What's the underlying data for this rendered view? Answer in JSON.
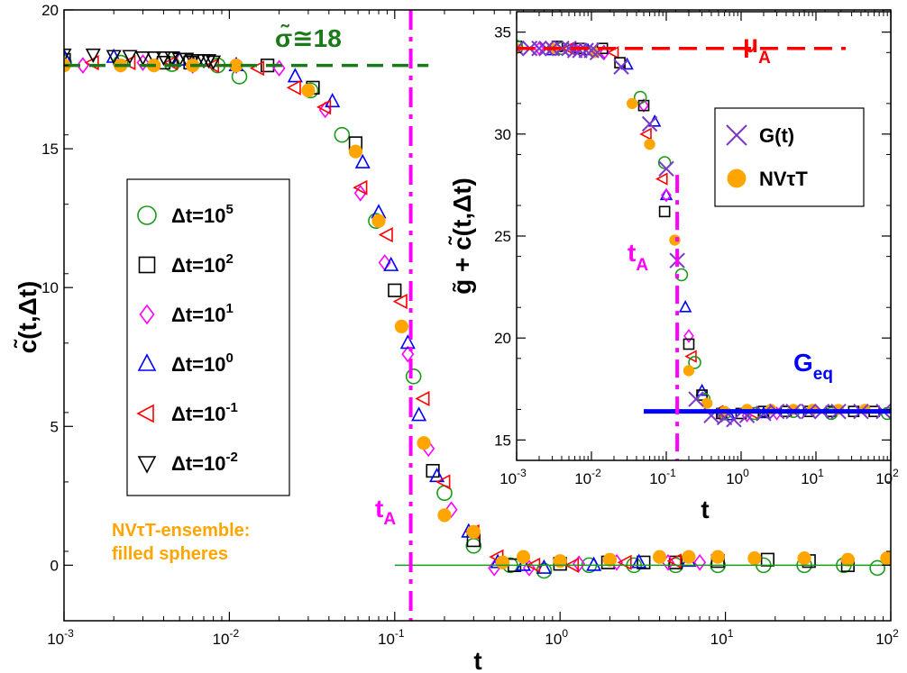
{
  "chart_data": [
    {
      "id": "main",
      "type": "scatter",
      "title": "",
      "xlabel": "t",
      "ylabel": "c̃(t,Δt)",
      "xscale": "log",
      "xlim": [
        0.001,
        100
      ],
      "ylim": [
        -2,
        20
      ],
      "xticks": [
        {
          "base": "10",
          "exp": "-3",
          "value": 0.001
        },
        {
          "base": "10",
          "exp": "-2",
          "value": 0.01
        },
        {
          "base": "10",
          "exp": "-1",
          "value": 0.1
        },
        {
          "base": "10",
          "exp": "0",
          "value": 1
        },
        {
          "base": "10",
          "exp": "1",
          "value": 10
        },
        {
          "base": "10",
          "exp": "2",
          "value": 100
        }
      ],
      "yticks": [
        {
          "label": "0",
          "value": 0
        },
        {
          "label": "5",
          "value": 5
        },
        {
          "label": "10",
          "value": 10
        },
        {
          "label": "15",
          "value": 15
        },
        {
          "label": "20",
          "value": 20
        }
      ],
      "grid": false,
      "legend_position": "left-middle",
      "legend": [
        {
          "text": "Δt=10",
          "exp": "5",
          "marker": "circle",
          "color": "#1a9a1a"
        },
        {
          "text": "Δt=10",
          "exp": "2",
          "marker": "square",
          "color": "#000000"
        },
        {
          "text": "Δt=10",
          "exp": "1",
          "marker": "diamond",
          "color": "#ff00ff"
        },
        {
          "text": "Δt=10",
          "exp": "0",
          "marker": "triangle-up",
          "color": "#0000ff"
        },
        {
          "text": "Δt=10",
          "exp": "-1",
          "marker": "triangle-left",
          "color": "#ff0000"
        },
        {
          "text": "Δt=10",
          "exp": "-2",
          "marker": "triangle-down",
          "color": "#000000"
        }
      ],
      "annotations": {
        "sigma_label": "σ̃≅18",
        "sigma_value": 18,
        "sigma_line_xrange": [
          0.001,
          0.16
        ],
        "sigma_color": "#1a7a1a",
        "tA_label": "t",
        "tA_sub": "A",
        "tA_value": 0.125,
        "tA_color": "#ff00ff",
        "zero_line_xrange": [
          0.1,
          100
        ],
        "zero_line_color": "#1a9a1a",
        "ensemble_label_line1": "NVτT-ensemble:",
        "ensemble_label_line2": "filled spheres",
        "ensemble_color": "#ffa500"
      },
      "series": [
        {
          "name": "Δt=10^5",
          "marker": "circle",
          "color": "#1a9a1a",
          "x": [
            0.001,
            0.0022,
            0.0045,
            0.0085,
            0.0115,
            0.031,
            0.048,
            0.077,
            0.13,
            0.2,
            0.3,
            0.5,
            0.8,
            1.5,
            2.8,
            5,
            9,
            17,
            30,
            52,
            83
          ],
          "y": [
            18.1,
            18.1,
            18.05,
            18.0,
            17.6,
            17.1,
            15.5,
            12.4,
            6.8,
            2.6,
            0.7,
            0.0,
            -0.2,
            0.0,
            0.0,
            0.0,
            0.0,
            0.0,
            0.0,
            0.0,
            -0.1
          ]
        },
        {
          "name": "Δt=10^2",
          "marker": "square",
          "color": "#000000",
          "x": [
            0.001,
            0.004,
            0.0058,
            0.017,
            0.032,
            0.058,
            0.1,
            0.17,
            0.3,
            0.53,
            1.0,
            1.95,
            3.2,
            5,
            9,
            18,
            32,
            55
          ],
          "y": [
            18.2,
            18.1,
            18.1,
            18.0,
            17.2,
            15.2,
            9.9,
            3.4,
            0.9,
            0.0,
            0.05,
            0.1,
            0.1,
            0.1,
            0.15,
            0.2,
            0.15,
            0.0
          ]
        },
        {
          "name": "Δt=10^1",
          "marker": "diamond",
          "color": "#ff00ff",
          "x": [
            0.0013,
            0.003,
            0.006,
            0.011,
            0.02,
            0.038,
            0.062,
            0.087,
            0.12,
            0.16,
            0.22,
            0.4,
            0.65,
            1.3,
            2.2,
            4.5,
            7
          ],
          "y": [
            18.0,
            18.1,
            18.0,
            18.0,
            17.9,
            16.4,
            13.4,
            10.9,
            7.6,
            4.2,
            2.0,
            -0.1,
            -0.1,
            0.05,
            0.1,
            0.1,
            0.1
          ]
        },
        {
          "name": "Δt=10^0",
          "marker": "triangle-up",
          "color": "#0000ff",
          "x": [
            0.001,
            0.002,
            0.005,
            0.011,
            0.025,
            0.042,
            0.064,
            0.08,
            0.095,
            0.12,
            0.14,
            0.18,
            0.28,
            0.42,
            0.6,
            0.8,
            1.6,
            3,
            6
          ],
          "y": [
            18.3,
            18.3,
            18.2,
            18.0,
            17.6,
            16.7,
            14.5,
            12.7,
            10.8,
            8.0,
            5.4,
            3.2,
            1.2,
            0.1,
            0.0,
            -0.1,
            0.0,
            0.1,
            0.15
          ]
        },
        {
          "name": "Δt=10^-1",
          "marker": "triangle-left",
          "color": "#ff0000",
          "x": [
            0.0015,
            0.0025,
            0.0045,
            0.008,
            0.015,
            0.025,
            0.038,
            0.063,
            0.09,
            0.11,
            0.15,
            0.2,
            0.3,
            0.42,
            0.7,
            1.2,
            2.5,
            5
          ],
          "y": [
            18.1,
            18.1,
            18.1,
            18.0,
            17.9,
            17.2,
            16.5,
            13.6,
            11.9,
            9.5,
            6.0,
            3.0,
            1.2,
            0.3,
            0.0,
            0.0,
            0.1,
            0.15
          ]
        },
        {
          "name": "Δt=10^-2",
          "marker": "triangle-down",
          "color": "#000000",
          "x": [
            0.001,
            0.0015,
            0.002,
            0.0025,
            0.003,
            0.0035,
            0.004,
            0.0045,
            0.005,
            0.0055,
            0.006,
            0.0065,
            0.007,
            0.0075,
            0.008
          ],
          "y": [
            18.4,
            18.4,
            18.35,
            18.35,
            18.3,
            18.3,
            18.3,
            18.3,
            18.25,
            18.25,
            18.2,
            18.2,
            18.2,
            18.2,
            18.15
          ]
        },
        {
          "name": "NVτT",
          "marker": "filled-circle",
          "color": "#ffa500",
          "x": [
            0.001,
            0.0022,
            0.0035,
            0.006,
            0.011,
            0.03,
            0.058,
            0.08,
            0.11,
            0.15,
            0.2,
            0.3,
            0.45,
            0.6,
            1.0,
            2.0,
            4.0,
            6.0,
            9.0,
            15,
            30,
            55,
            95
          ],
          "y": [
            18.0,
            18.0,
            18.0,
            18.0,
            18.0,
            17.1,
            14.9,
            12.4,
            8.6,
            4.4,
            1.8,
            1.2,
            0.1,
            0.3,
            0.15,
            0.2,
            0.3,
            0.3,
            0.3,
            0.25,
            0.25,
            0.2,
            0.25
          ]
        }
      ]
    },
    {
      "id": "inset",
      "type": "scatter",
      "title": "",
      "xlabel": "t",
      "ylabel": "g̃ + c̃(t,Δt)",
      "xscale": "log",
      "xlim": [
        0.001,
        100
      ],
      "ylim": [
        14,
        36
      ],
      "xticks": [
        {
          "base": "10",
          "exp": "-3",
          "value": 0.001
        },
        {
          "base": "10",
          "exp": "-2",
          "value": 0.01
        },
        {
          "base": "10",
          "exp": "-1",
          "value": 0.1
        },
        {
          "base": "10",
          "exp": "0",
          "value": 1
        },
        {
          "base": "10",
          "exp": "1",
          "value": 10
        },
        {
          "base": "10",
          "exp": "2",
          "value": 100
        }
      ],
      "yticks": [
        {
          "label": "15",
          "value": 15
        },
        {
          "label": "20",
          "value": 20
        },
        {
          "label": "25",
          "value": 25
        },
        {
          "label": "30",
          "value": 30
        },
        {
          "label": "35",
          "value": 35
        }
      ],
      "grid": false,
      "legend_position": "top-right",
      "legend": [
        {
          "text": "G(t)",
          "marker": "x",
          "color": "#7b38c9"
        },
        {
          "text": "NVτT",
          "marker": "filled-circle",
          "color": "#ffa500"
        }
      ],
      "annotations": {
        "mu_label": "μ",
        "mu_sub": "A",
        "mu_value": 34.2,
        "mu_line_xrange": [
          0.001,
          25
        ],
        "mu_color": "#ff0000",
        "tA_label": "t",
        "tA_sub": "A",
        "tA_value": 0.14,
        "tA_color": "#ff00ff",
        "Geq_label": "G",
        "Geq_sub": "eq",
        "Geq_value": 16.4,
        "Geq_line_xrange": [
          0.05,
          100
        ],
        "Geq_color": "#0000ff"
      },
      "series": [
        {
          "name": "G(t)",
          "marker": "x",
          "color": "#7b38c9",
          "x": [
            0.001,
            0.0015,
            0.002,
            0.0025,
            0.003,
            0.004,
            0.005,
            0.006,
            0.007,
            0.0085,
            0.01,
            0.012,
            0.025,
            0.06,
            0.1,
            0.14,
            0.25,
            0.4,
            0.6,
            0.8,
            1.2,
            2,
            3,
            5,
            8,
            12,
            20,
            40,
            80
          ],
          "y": [
            34.2,
            34.2,
            34.2,
            34.2,
            34.2,
            34.2,
            34.2,
            34.1,
            34.1,
            34.1,
            34.1,
            34.0,
            33.3,
            30.5,
            28.3,
            23.8,
            17.0,
            16.2,
            16.1,
            16.0,
            16.2,
            16.3,
            16.4,
            16.4,
            16.4,
            16.4,
            16.4,
            16.4,
            16.4
          ]
        },
        {
          "name": "NVτT",
          "marker": "filled-circle",
          "color": "#ffa500",
          "x": [
            0.001,
            0.003,
            0.011,
            0.035,
            0.06,
            0.13,
            0.2,
            0.35,
            0.6,
            1.2,
            2.5,
            5,
            9,
            20,
            45
          ],
          "y": [
            34.2,
            34.2,
            34.0,
            31.5,
            29.5,
            24.8,
            18.4,
            16.8,
            16.4,
            16.5,
            16.5,
            16.5,
            16.5,
            16.5,
            16.5
          ]
        },
        {
          "name": "Δt=10^5",
          "marker": "circle",
          "color": "#1a9a1a",
          "x": [
            0.001,
            0.004,
            0.045,
            0.095,
            0.16,
            0.24,
            0.32,
            0.6,
            1.5,
            5,
            16,
            90
          ],
          "y": [
            34.3,
            34.2,
            31.8,
            28.6,
            23.1,
            18.8,
            17.0,
            16.3,
            16.3,
            16.4,
            16.3,
            16.3
          ]
        },
        {
          "name": "Δt=10^2",
          "marker": "square",
          "color": "#000000",
          "x": [
            0.001,
            0.0035,
            0.007,
            0.014,
            0.024,
            0.05,
            0.095,
            0.2,
            0.3,
            0.55,
            1.0,
            2.0,
            4.0,
            8,
            16,
            32,
            60
          ],
          "y": [
            34.3,
            34.3,
            34.2,
            34.2,
            33.5,
            31.4,
            26.2,
            19.7,
            17.2,
            16.3,
            16.3,
            16.4,
            16.4,
            16.4,
            16.4,
            16.4,
            16.4
          ]
        },
        {
          "name": "Δt=10^1",
          "marker": "diamond",
          "color": "#ff00ff",
          "x": [
            0.002,
            0.006,
            0.015,
            0.05,
            0.1,
            0.2,
            0.55,
            1.2,
            3
          ],
          "y": [
            34.2,
            34.2,
            34.0,
            31.4,
            27.0,
            20.1,
            16.2,
            16.2,
            16.3
          ]
        },
        {
          "name": "Δt=10^0",
          "marker": "triangle-up",
          "color": "#0000ff",
          "x": [
            0.003,
            0.009,
            0.03,
            0.07,
            0.1,
            0.18,
            0.3,
            0.7,
            2
          ],
          "y": [
            34.1,
            34.1,
            33.4,
            30.6,
            27.0,
            21.5,
            17.4,
            16.2,
            16.3
          ]
        },
        {
          "name": "Δt=10^-1",
          "marker": "triangle-left",
          "color": "#ff0000",
          "x": [
            0.005,
            0.02,
            0.055,
            0.09,
            0.22,
            0.5,
            1.5
          ],
          "y": [
            34.2,
            34.0,
            30.0,
            27.8,
            19.1,
            16.4,
            16.3
          ]
        }
      ]
    }
  ]
}
